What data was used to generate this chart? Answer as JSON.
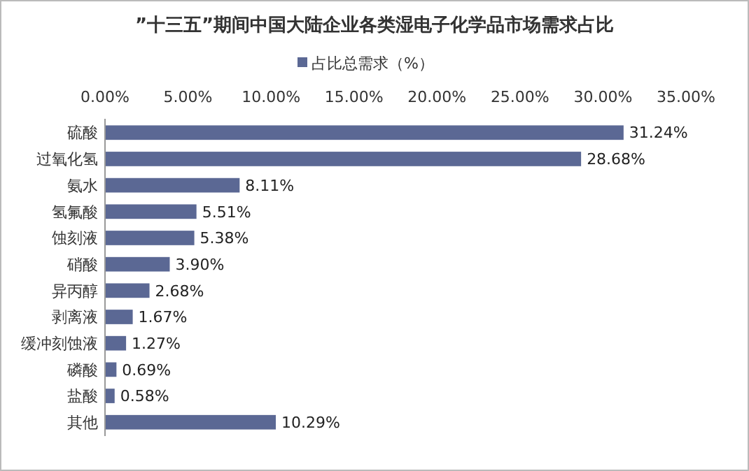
{
  "chart_data": {
    "type": "bar",
    "orientation": "horizontal",
    "title": "”十三五”期间中国大陆企业各类湿电子化学品市场需求占比",
    "categories": [
      "硫酸",
      "过氧化氢",
      "氨水",
      "氢氟酸",
      "蚀刻液",
      "硝酸",
      "异丙醇",
      "剥离液",
      "缓冲刻蚀液",
      "磷酸",
      "盐酸",
      "其他"
    ],
    "series": [
      {
        "name": "占比总需求（%）",
        "color": "#5b6894",
        "values": [
          31.24,
          28.68,
          8.11,
          5.51,
          5.38,
          3.9,
          2.68,
          1.67,
          1.27,
          0.69,
          0.58,
          10.29
        ]
      }
    ],
    "value_labels": [
      "31.24%",
      "28.68%",
      "8.11%",
      "5.51%",
      "5.38%",
      "3.90%",
      "2.68%",
      "1.67%",
      "1.27%",
      "0.69%",
      "0.58%",
      "10.29%"
    ],
    "xlim": [
      0,
      35
    ],
    "xticks": [
      {
        "value": 0,
        "label": "0.00%"
      },
      {
        "value": 5,
        "label": "5.00%"
      },
      {
        "value": 10,
        "label": "10.00%"
      },
      {
        "value": 15,
        "label": "15.00%"
      },
      {
        "value": 20,
        "label": "20.00%"
      },
      {
        "value": 25,
        "label": "25.00%"
      },
      {
        "value": 30,
        "label": "30.00%"
      },
      {
        "value": 35,
        "label": "35.00%"
      }
    ],
    "grid": false,
    "legend": "top"
  }
}
